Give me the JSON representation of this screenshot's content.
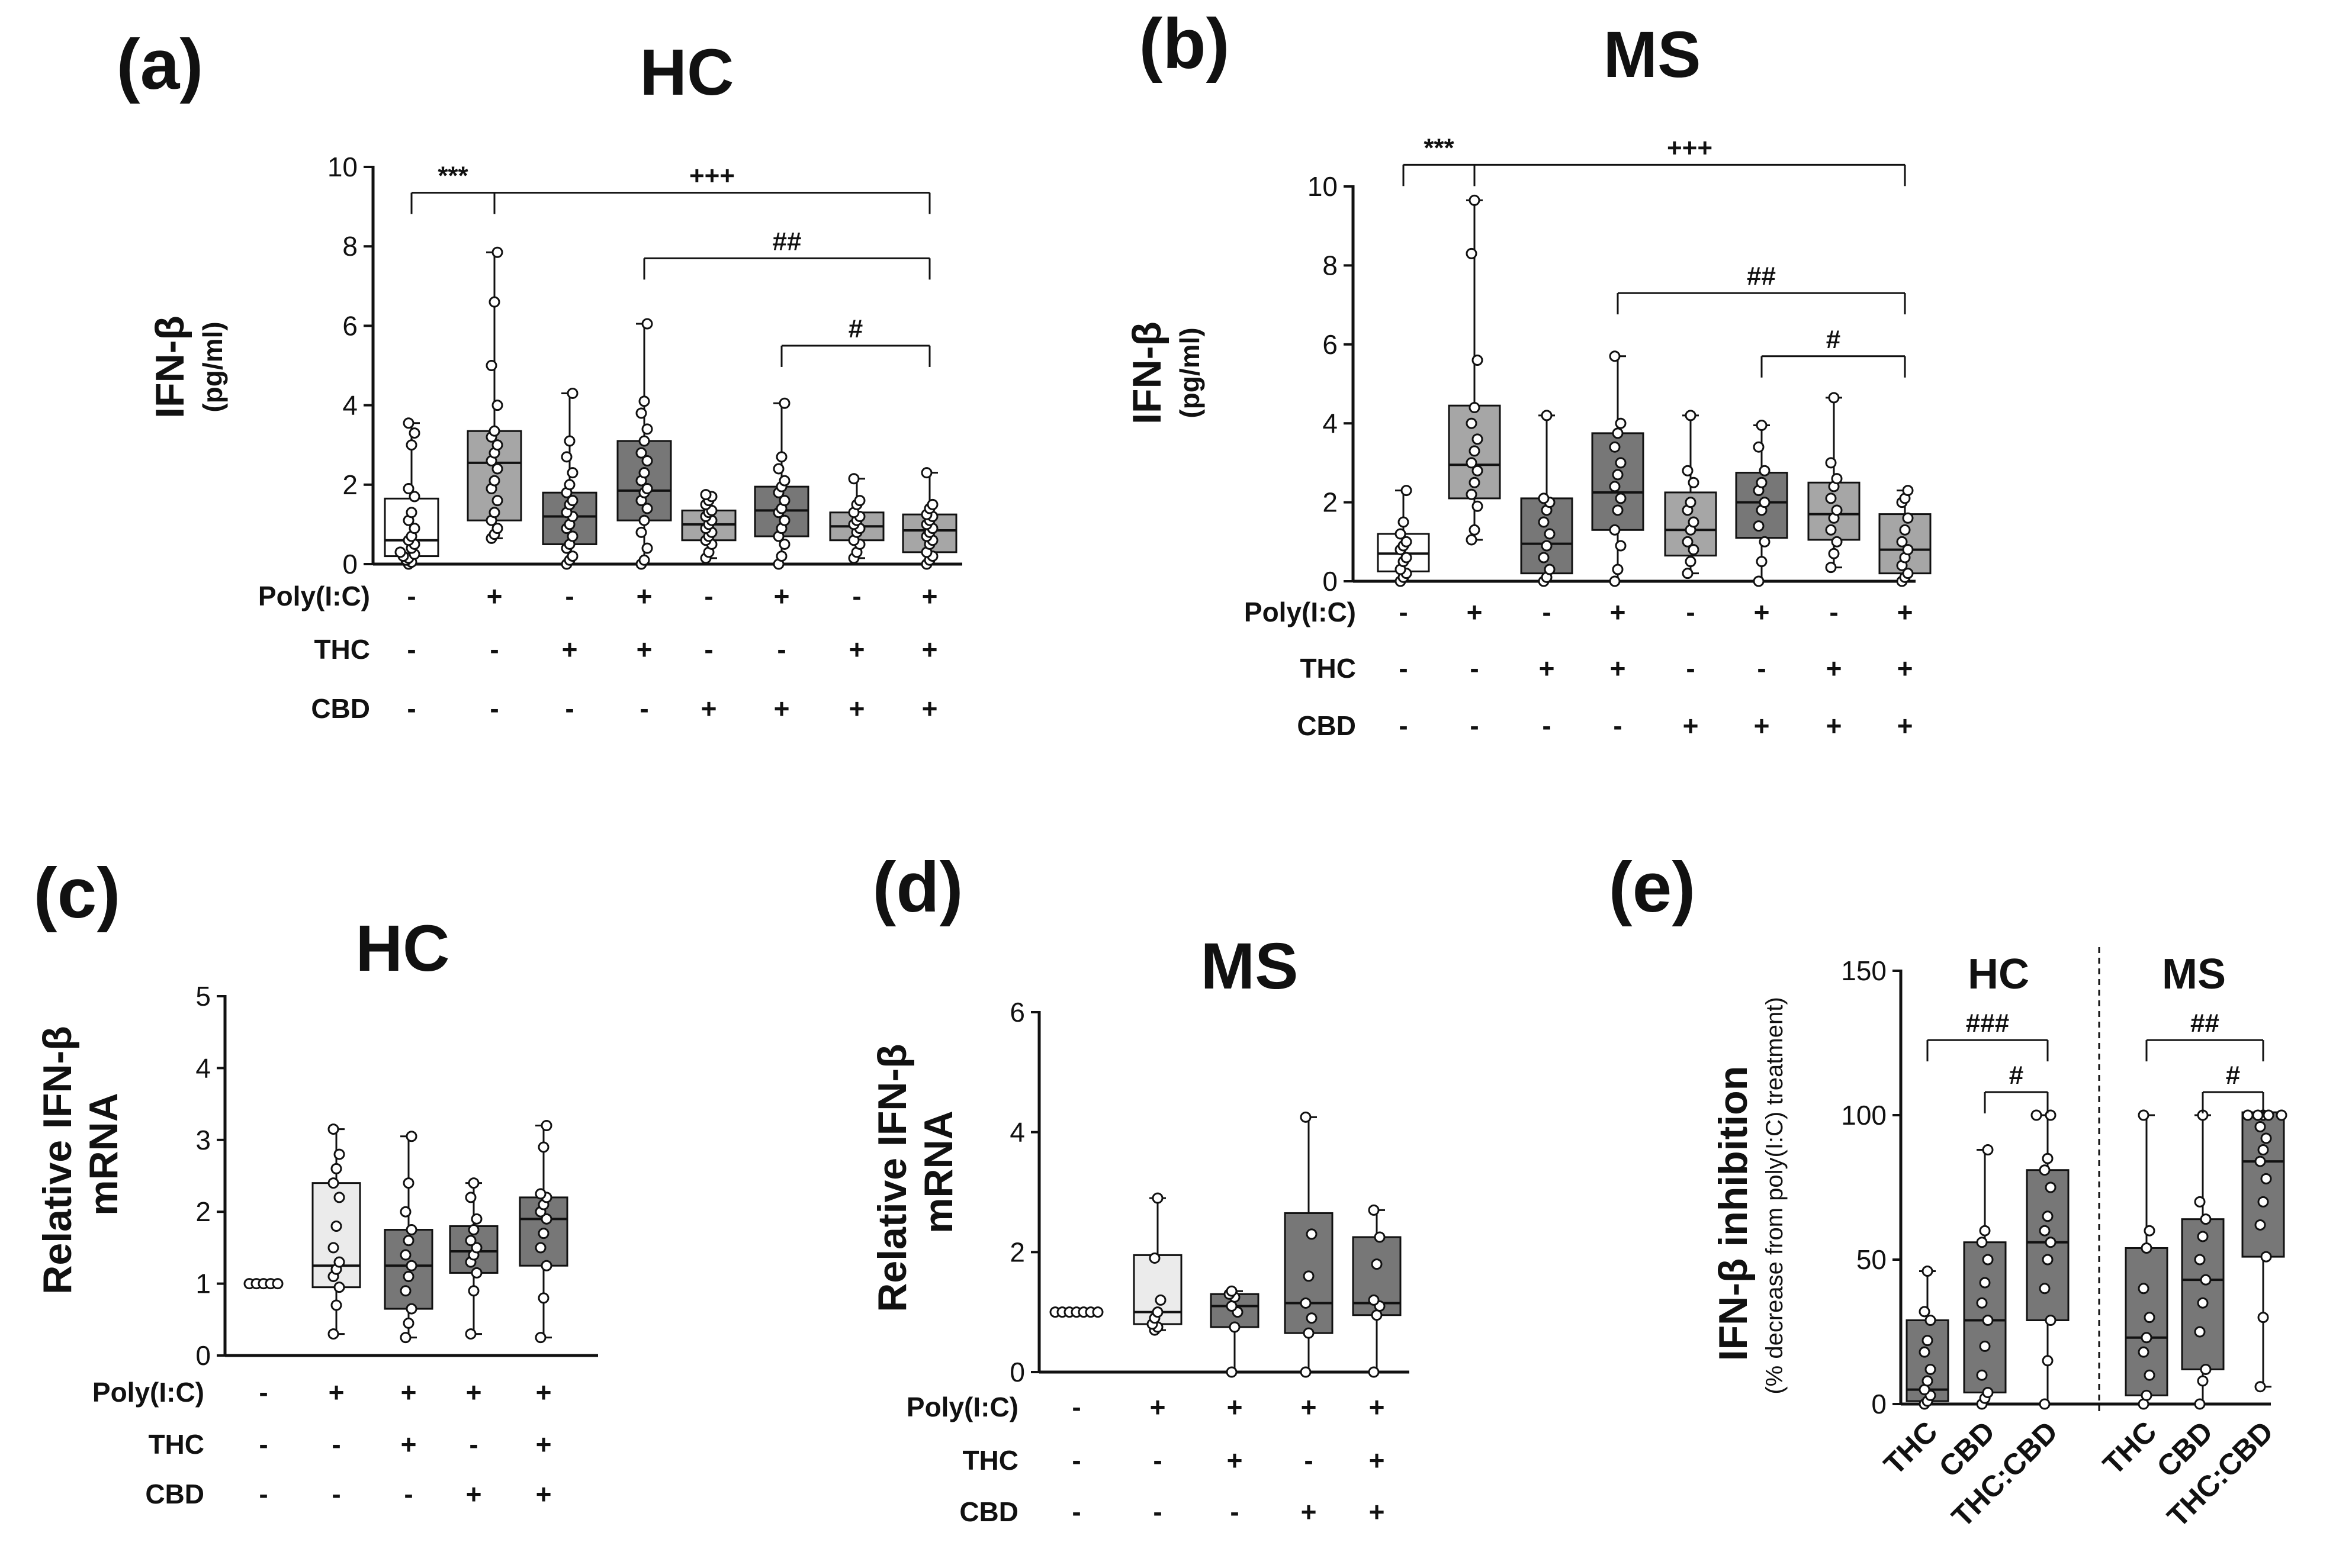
{
  "colors": {
    "axis": "#111111",
    "white": "#ffffff",
    "light": "#ebebeb",
    "mid": "#a6a6a6",
    "dark": "#777777"
  },
  "chart_data": [
    {
      "id": "a",
      "panel_label": "(a)",
      "title": "HC",
      "type": "box",
      "ylabel": "IFN-β",
      "ylabel_unit": "(pg/ml)",
      "ylim": [
        0,
        10
      ],
      "yticks": [
        "0",
        "2",
        "4",
        "6",
        "8",
        "10"
      ],
      "conditions": [
        {
          "label": "Poly(I:C)",
          "values": [
            "-",
            "+",
            "-",
            "+",
            "-",
            "+",
            "-",
            "+"
          ]
        },
        {
          "label": "THC",
          "values": [
            "-",
            "-",
            "+",
            "+",
            "-",
            "-",
            "+",
            "+"
          ]
        },
        {
          "label": "CBD",
          "values": [
            "-",
            "-",
            "-",
            "-",
            "+",
            "+",
            "+",
            "+"
          ]
        }
      ],
      "groups": [
        {
          "box": [
            0,
            0.2,
            0.6,
            1.65,
            3.55
          ],
          "fill": "white",
          "points": [
            0,
            0.05,
            0.1,
            0.15,
            0.2,
            0.25,
            0.3,
            0.4,
            0.5,
            0.6,
            0.7,
            0.9,
            1.1,
            1.3,
            1.7,
            1.9,
            3.0,
            3.3,
            3.55
          ]
        },
        {
          "box": [
            0.65,
            1.1,
            2.55,
            3.35,
            7.85
          ],
          "fill": "mid",
          "points": [
            0.65,
            0.75,
            0.9,
            1.1,
            1.3,
            1.6,
            1.9,
            2.1,
            2.4,
            2.6,
            2.8,
            3.0,
            3.2,
            3.35,
            4.0,
            5.0,
            6.6,
            7.85
          ]
        },
        {
          "box": [
            0,
            0.5,
            1.2,
            1.8,
            4.3
          ],
          "fill": "dark",
          "points": [
            0,
            0.1,
            0.2,
            0.4,
            0.5,
            0.7,
            0.9,
            1.0,
            1.2,
            1.3,
            1.5,
            1.6,
            1.8,
            2.0,
            2.3,
            2.7,
            3.1,
            4.3
          ]
        },
        {
          "box": [
            0,
            1.1,
            1.85,
            3.1,
            6.05
          ],
          "fill": "dark",
          "points": [
            0,
            0.1,
            0.4,
            0.8,
            1.1,
            1.4,
            1.6,
            1.8,
            1.9,
            2.1,
            2.3,
            2.6,
            2.8,
            3.1,
            3.4,
            3.8,
            4.1,
            6.05
          ]
        },
        {
          "box": [
            0.15,
            0.6,
            1.0,
            1.35,
            1.75
          ],
          "fill": "mid",
          "points": [
            0.15,
            0.3,
            0.5,
            0.6,
            0.7,
            0.8,
            0.9,
            1.0,
            1.1,
            1.2,
            1.3,
            1.35,
            1.5,
            1.6,
            1.7,
            1.75
          ]
        },
        {
          "box": [
            0,
            0.7,
            1.35,
            1.95,
            4.05
          ],
          "fill": "dark",
          "points": [
            0,
            0.2,
            0.5,
            0.7,
            0.9,
            1.1,
            1.3,
            1.4,
            1.6,
            1.8,
            1.95,
            2.1,
            2.4,
            2.7,
            4.05
          ]
        },
        {
          "box": [
            0.15,
            0.6,
            0.95,
            1.3,
            2.15
          ],
          "fill": "mid",
          "points": [
            0.15,
            0.3,
            0.5,
            0.6,
            0.8,
            0.9,
            1.0,
            1.1,
            1.2,
            1.3,
            1.5,
            1.6,
            2.15
          ]
        },
        {
          "box": [
            0,
            0.3,
            0.85,
            1.25,
            2.3
          ],
          "fill": "mid",
          "points": [
            0,
            0.1,
            0.2,
            0.3,
            0.5,
            0.6,
            0.7,
            0.8,
            0.9,
            1.0,
            1.1,
            1.2,
            1.25,
            1.4,
            1.5,
            2.3
          ]
        }
      ],
      "brackets": [
        {
          "from": 0,
          "to": 1,
          "y": 9.35,
          "label": "***"
        },
        {
          "from": 1,
          "to": 7,
          "y": 9.35,
          "label": "+++"
        },
        {
          "from": 3,
          "to": 7,
          "y": 7.7,
          "label": "##"
        },
        {
          "from": 5,
          "to": 7,
          "y": 5.5,
          "label": "#"
        }
      ]
    },
    {
      "id": "b",
      "panel_label": "(b)",
      "title": "MS",
      "type": "box",
      "ylabel": "IFN-β",
      "ylabel_unit": "(pg/ml)",
      "ylim": [
        0,
        10
      ],
      "yticks": [
        "0",
        "2",
        "4",
        "6",
        "8",
        "10"
      ],
      "conditions": [
        {
          "label": "Poly(I:C)",
          "values": [
            "-",
            "+",
            "-",
            "+",
            "-",
            "+",
            "-",
            "+"
          ]
        },
        {
          "label": "THC",
          "values": [
            "-",
            "-",
            "+",
            "+",
            "-",
            "-",
            "+",
            "+"
          ]
        },
        {
          "label": "CBD",
          "values": [
            "-",
            "-",
            "-",
            "-",
            "+",
            "+",
            "+",
            "+"
          ]
        }
      ],
      "groups": [
        {
          "box": [
            0,
            0.25,
            0.7,
            1.2,
            2.3
          ],
          "fill": "white",
          "points": [
            0,
            0.1,
            0.2,
            0.3,
            0.5,
            0.6,
            0.8,
            0.9,
            1.0,
            1.2,
            1.5,
            2.3
          ]
        },
        {
          "box": [
            1.05,
            2.1,
            2.95,
            4.45,
            9.65
          ],
          "fill": "mid",
          "points": [
            1.05,
            1.3,
            1.9,
            2.2,
            2.5,
            2.8,
            3.0,
            3.3,
            3.6,
            4.0,
            4.4,
            5.6,
            8.3,
            9.65
          ]
        },
        {
          "box": [
            0,
            0.2,
            0.95,
            2.1,
            4.2
          ],
          "fill": "dark",
          "points": [
            0,
            0.1,
            0.3,
            0.6,
            0.9,
            1.2,
            1.5,
            1.8,
            2.0,
            2.1,
            4.2
          ]
        },
        {
          "box": [
            0,
            1.3,
            2.25,
            3.75,
            5.7
          ],
          "fill": "dark",
          "points": [
            0,
            0.3,
            0.9,
            1.3,
            1.8,
            2.1,
            2.4,
            2.7,
            3.0,
            3.4,
            3.75,
            4.0,
            5.7
          ]
        },
        {
          "box": [
            0.2,
            0.65,
            1.3,
            2.25,
            4.2
          ],
          "fill": "mid",
          "points": [
            0.2,
            0.5,
            0.8,
            1.0,
            1.3,
            1.5,
            1.8,
            2.0,
            2.5,
            2.8,
            4.2
          ]
        },
        {
          "box": [
            0,
            1.1,
            2.0,
            2.75,
            3.95
          ],
          "fill": "dark",
          "points": [
            0,
            0.5,
            1.0,
            1.4,
            1.8,
            2.0,
            2.3,
            2.5,
            2.8,
            3.4,
            3.95
          ]
        },
        {
          "box": [
            0.35,
            1.05,
            1.7,
            2.5,
            4.65
          ],
          "fill": "mid",
          "points": [
            0.35,
            0.7,
            1.0,
            1.3,
            1.6,
            1.8,
            2.1,
            2.4,
            2.6,
            3.0,
            4.65
          ]
        },
        {
          "box": [
            0,
            0.2,
            0.8,
            1.7,
            2.3
          ],
          "fill": "mid",
          "points": [
            0,
            0.1,
            0.2,
            0.4,
            0.6,
            0.8,
            1.0,
            1.3,
            1.6,
            2.0,
            2.1,
            2.3
          ]
        }
      ],
      "brackets": [
        {
          "from": 0,
          "to": 1,
          "y": 10.55,
          "label": "***"
        },
        {
          "from": 1,
          "to": 7,
          "y": 10.55,
          "label": "+++"
        },
        {
          "from": 3,
          "to": 7,
          "y": 7.3,
          "label": "##"
        },
        {
          "from": 5,
          "to": 7,
          "y": 5.7,
          "label": "#"
        }
      ]
    },
    {
      "id": "c",
      "panel_label": "(c)",
      "title": "HC",
      "type": "box",
      "ylabel": "Relative IFN-β",
      "ylabel_unit": "mRNA",
      "ylim": [
        0,
        5
      ],
      "yticks": [
        "0",
        "1",
        "2",
        "3",
        "4",
        "5"
      ],
      "conditions": [
        {
          "label": "Poly(I:C)",
          "values": [
            "-",
            "+",
            "+",
            "+",
            "+"
          ]
        },
        {
          "label": "THC",
          "values": [
            "-",
            "-",
            "+",
            "-",
            "+"
          ]
        },
        {
          "label": "CBD",
          "values": [
            "-",
            "-",
            "-",
            "+",
            "+"
          ]
        }
      ],
      "groups": [
        {
          "box": [
            1,
            1,
            1,
            1,
            1
          ],
          "fill": "white",
          "points": [
            1,
            1,
            1,
            1,
            1
          ],
          "horizontal_points": true
        },
        {
          "box": [
            0.3,
            0.95,
            1.25,
            2.4,
            3.15
          ],
          "fill": "light",
          "points": [
            0.3,
            0.7,
            0.95,
            1.1,
            1.2,
            1.3,
            1.5,
            1.8,
            2.2,
            2.4,
            2.6,
            2.8,
            3.15
          ]
        },
        {
          "box": [
            0.25,
            0.65,
            1.25,
            1.75,
            3.05
          ],
          "fill": "dark",
          "points": [
            0.25,
            0.45,
            0.65,
            0.9,
            1.1,
            1.25,
            1.4,
            1.6,
            1.75,
            2.0,
            2.4,
            3.05
          ]
        },
        {
          "box": [
            0.3,
            1.15,
            1.45,
            1.8,
            2.4
          ],
          "fill": "dark",
          "points": [
            0.3,
            0.9,
            1.15,
            1.3,
            1.4,
            1.5,
            1.6,
            1.75,
            1.9,
            2.2,
            2.4
          ]
        },
        {
          "box": [
            0.25,
            1.25,
            1.9,
            2.2,
            3.2
          ],
          "fill": "dark",
          "points": [
            0.25,
            0.8,
            1.25,
            1.5,
            1.7,
            1.9,
            2.0,
            2.1,
            2.2,
            2.25,
            2.9,
            3.2
          ]
        }
      ],
      "brackets": []
    },
    {
      "id": "d",
      "panel_label": "(d)",
      "title": "MS",
      "type": "box",
      "ylabel": "Relative IFN-β",
      "ylabel_unit": "mRNA",
      "ylim": [
        0,
        6
      ],
      "yticks": [
        "0",
        "2",
        "4",
        "6"
      ],
      "conditions": [
        {
          "label": "Poly(I:C)",
          "values": [
            "-",
            "+",
            "+",
            "+",
            "+"
          ]
        },
        {
          "label": "THC",
          "values": [
            "-",
            "-",
            "+",
            "-",
            "+"
          ]
        },
        {
          "label": "CBD",
          "values": [
            "-",
            "-",
            "-",
            "+",
            "+"
          ]
        }
      ],
      "groups": [
        {
          "box": [
            1,
            1,
            1,
            1,
            1
          ],
          "fill": "white",
          "points": [
            1,
            1,
            1,
            1,
            1,
            1,
            1
          ],
          "horizontal_points": true
        },
        {
          "box": [
            0.7,
            0.8,
            1.0,
            1.95,
            2.9
          ],
          "fill": "light",
          "points": [
            0.7,
            0.75,
            0.8,
            0.9,
            1.0,
            1.2,
            1.9,
            2.9
          ]
        },
        {
          "box": [
            0,
            0.75,
            1.1,
            1.3,
            1.35
          ],
          "fill": "dark",
          "points": [
            0,
            0.75,
            1.0,
            1.1,
            1.25,
            1.3,
            1.35
          ]
        },
        {
          "box": [
            0,
            0.65,
            1.15,
            2.65,
            4.25
          ],
          "fill": "dark",
          "points": [
            0,
            0.65,
            0.9,
            1.15,
            1.6,
            2.3,
            4.25
          ]
        },
        {
          "box": [
            0,
            0.95,
            1.15,
            2.25,
            2.7
          ],
          "fill": "dark",
          "points": [
            0,
            0.95,
            1.1,
            1.2,
            1.8,
            2.25,
            2.7
          ]
        }
      ],
      "brackets": []
    },
    {
      "id": "e",
      "panel_label": "(e)",
      "title": "",
      "type": "box",
      "ylabel": "IFN-β inhibition",
      "ylabel_unit": "(% decrease from poly(I:C) treatment)",
      "ylim": [
        0,
        150
      ],
      "yticks": [
        "0",
        "50",
        "100",
        "150"
      ],
      "subgroups": [
        "HC",
        "MS"
      ],
      "categories": [
        "THC",
        "CBD",
        "THC:CBD",
        "THC",
        "CBD",
        "THC:CBD"
      ],
      "groups": [
        {
          "box": [
            0,
            1,
            5,
            29,
            46
          ],
          "fill": "dark",
          "points": [
            0,
            1,
            3,
            5,
            8,
            12,
            18,
            22,
            29,
            32,
            46
          ]
        },
        {
          "box": [
            0,
            4,
            29,
            56,
            88
          ],
          "fill": "dark",
          "points": [
            0,
            2,
            4,
            10,
            20,
            29,
            35,
            42,
            50,
            56,
            60,
            88
          ]
        },
        {
          "box": [
            0,
            29,
            56,
            81,
            100
          ],
          "fill": "dark",
          "points": [
            0,
            15,
            29,
            40,
            50,
            56,
            60,
            65,
            75,
            81,
            85,
            100,
            100
          ]
        },
        {
          "box": [
            0,
            3,
            23,
            54,
            100
          ],
          "fill": "dark",
          "points": [
            0,
            3,
            10,
            18,
            23,
            30,
            40,
            54,
            60,
            100
          ]
        },
        {
          "box": [
            0,
            12,
            43,
            64,
            100
          ],
          "fill": "dark",
          "points": [
            0,
            8,
            12,
            25,
            35,
            43,
            50,
            58,
            64,
            70,
            100
          ]
        },
        {
          "box": [
            6,
            51,
            84,
            101,
            101
          ],
          "fill": "dark",
          "points": [
            6,
            30,
            51,
            62,
            70,
            78,
            84,
            88,
            92,
            96,
            100,
            100,
            100,
            100,
            100
          ]
        }
      ],
      "brackets": [
        {
          "from": 0,
          "to": 2,
          "y": 126,
          "label": "###"
        },
        {
          "from": 1,
          "to": 2,
          "y": 108,
          "label": "#"
        },
        {
          "from": 3,
          "to": 5,
          "y": 126,
          "label": "##"
        },
        {
          "from": 4,
          "to": 5,
          "y": 108,
          "label": "#"
        }
      ]
    }
  ]
}
